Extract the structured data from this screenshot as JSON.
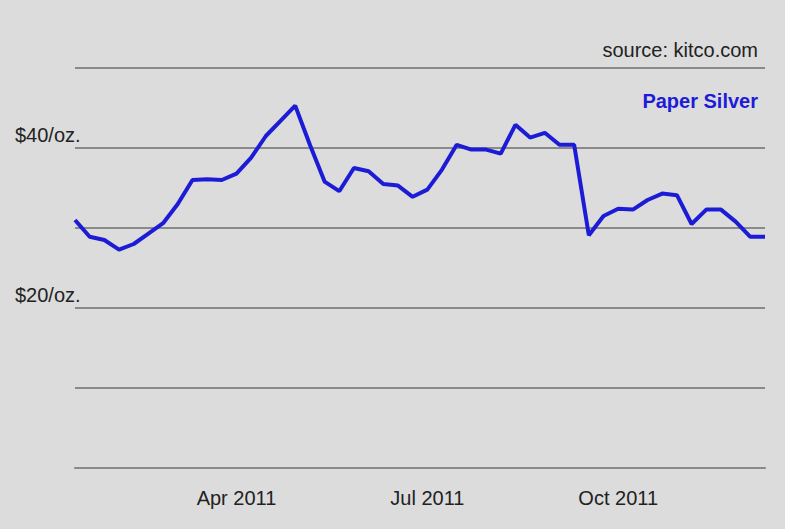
{
  "chart_data": {
    "type": "line",
    "title": "Paper Silver",
    "subtitle": "source: kitco.com",
    "categories": [
      null,
      null,
      null,
      null,
      null,
      null,
      null,
      null,
      null,
      null,
      null,
      "Apr 2011",
      null,
      null,
      null,
      null,
      null,
      null,
      null,
      null,
      null,
      null,
      null,
      null,
      "Jul 2011",
      null,
      null,
      null,
      null,
      null,
      null,
      null,
      null,
      null,
      null,
      null,
      null,
      "Oct 2011",
      null,
      null,
      null,
      null,
      null,
      null,
      null,
      null,
      null,
      null
    ],
    "values": [
      31.0,
      28.9,
      28.5,
      27.3,
      28.0,
      29.3,
      30.6,
      33.0,
      36.0,
      36.1,
      36.0,
      36.8,
      38.8,
      41.5,
      43.4,
      45.3,
      40.4,
      35.8,
      34.6,
      37.5,
      37.1,
      35.5,
      35.3,
      33.9,
      34.8,
      37.3,
      40.4,
      39.8,
      39.8,
      39.3,
      42.9,
      41.3,
      41.9,
      40.4,
      40.4,
      29.1,
      31.5,
      32.4,
      32.3,
      33.5,
      34.3,
      34.1,
      30.5,
      32.3,
      32.3,
      30.8,
      28.9,
      28.9
    ],
    "color": "#1c1cd6",
    "ylim": [
      0,
      50
    ],
    "yticks": [
      {
        "value": 0,
        "label": null
      },
      {
        "value": 10,
        "label": null
      },
      {
        "value": 20,
        "label": "$20/oz."
      },
      {
        "value": 30,
        "label": null
      },
      {
        "value": 40,
        "label": "$40/oz."
      },
      {
        "value": 50,
        "label": null
      }
    ],
    "grid": true
  }
}
